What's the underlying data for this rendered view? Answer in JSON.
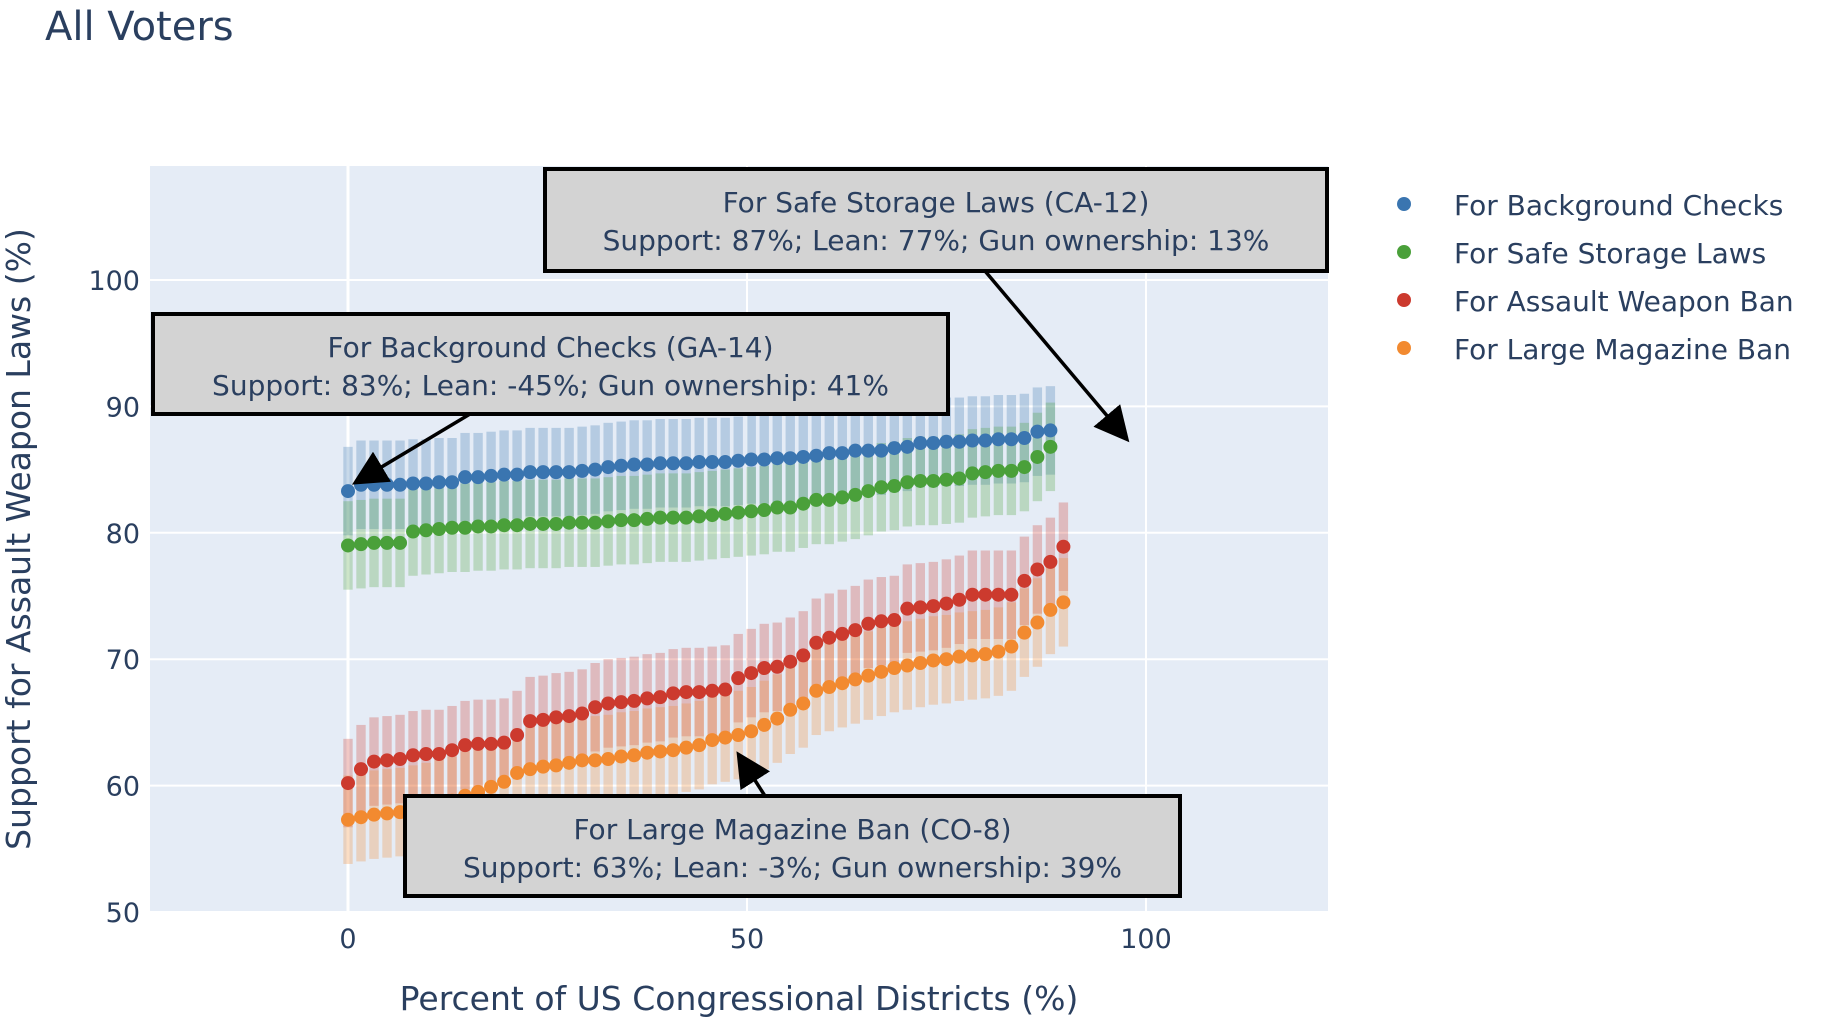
{
  "chart_data": {
    "type": "scatter",
    "title": "All Voters",
    "xlabel": "Percent of US Congressional Districts (%)",
    "ylabel": "Support for Assault Weapon Laws (%)",
    "xlim": [
      -24.5,
      122.5
    ],
    "ylim": [
      50,
      109
    ],
    "x_ticks": [
      0,
      50,
      100
    ],
    "y_ticks": [
      50,
      60,
      70,
      80,
      90,
      100
    ],
    "grid": true,
    "legend_position": "right",
    "x_step": 1.63,
    "error_band_halfwidth": 3.5,
    "series": [
      {
        "name": "For Background Checks",
        "color": "#3a75b0",
        "values": [
          83.3,
          83.8,
          83.8,
          83.8,
          83.8,
          83.9,
          83.9,
          84.0,
          84.0,
          84.4,
          84.4,
          84.5,
          84.6,
          84.6,
          84.8,
          84.8,
          84.8,
          84.8,
          84.9,
          85.0,
          85.2,
          85.3,
          85.4,
          85.4,
          85.5,
          85.5,
          85.5,
          85.6,
          85.6,
          85.6,
          85.7,
          85.8,
          85.8,
          85.9,
          85.9,
          86.0,
          86.1,
          86.3,
          86.3,
          86.5,
          86.5,
          86.5,
          86.7,
          86.8,
          87.1,
          87.1,
          87.2,
          87.2,
          87.3,
          87.3,
          87.4,
          87.4,
          87.5,
          88.0,
          88.1
        ]
      },
      {
        "name": "For Safe Storage Laws",
        "color": "#4aa03a",
        "values": [
          79.0,
          79.1,
          79.2,
          79.2,
          79.2,
          80.1,
          80.2,
          80.3,
          80.4,
          80.4,
          80.5,
          80.5,
          80.6,
          80.6,
          80.7,
          80.7,
          80.7,
          80.8,
          80.8,
          80.8,
          80.9,
          81.0,
          81.0,
          81.1,
          81.2,
          81.2,
          81.2,
          81.3,
          81.4,
          81.5,
          81.6,
          81.7,
          81.8,
          82.0,
          82.0,
          82.3,
          82.6,
          82.6,
          82.8,
          83.0,
          83.3,
          83.6,
          83.7,
          84.0,
          84.1,
          84.1,
          84.2,
          84.3,
          84.7,
          84.8,
          84.9,
          84.9,
          85.2,
          86.0,
          86.8
        ]
      },
      {
        "name": "For Assault Weapon Ban",
        "color": "#cc3a2e",
        "values": [
          60.2,
          61.3,
          61.9,
          62.0,
          62.1,
          62.4,
          62.5,
          62.5,
          62.8,
          63.2,
          63.3,
          63.3,
          63.4,
          64.0,
          65.1,
          65.2,
          65.4,
          65.5,
          65.7,
          66.2,
          66.5,
          66.6,
          66.7,
          66.9,
          67.0,
          67.3,
          67.4,
          67.4,
          67.5,
          67.6,
          68.5,
          68.9,
          69.3,
          69.4,
          69.8,
          70.3,
          71.3,
          71.7,
          72.0,
          72.3,
          72.8,
          73.0,
          73.1,
          74.0,
          74.1,
          74.2,
          74.4,
          74.7,
          75.1,
          75.1,
          75.1,
          75.1,
          76.2,
          77.1,
          77.7,
          78.9
        ]
      },
      {
        "name": "For Large Magazine Ban",
        "color": "#f28a30",
        "values": [
          57.3,
          57.5,
          57.7,
          57.8,
          57.9,
          58.1,
          58.3,
          58.6,
          58.8,
          59.2,
          59.5,
          59.9,
          60.3,
          61.0,
          61.3,
          61.5,
          61.6,
          61.8,
          62.0,
          62.0,
          62.1,
          62.3,
          62.4,
          62.6,
          62.7,
          62.8,
          63.0,
          63.2,
          63.6,
          63.8,
          64.0,
          64.3,
          64.8,
          65.3,
          66.0,
          66.5,
          67.5,
          67.8,
          68.1,
          68.4,
          68.7,
          69.0,
          69.3,
          69.5,
          69.7,
          69.9,
          70.0,
          70.2,
          70.3,
          70.4,
          70.6,
          71.0,
          72.1,
          72.9,
          73.9,
          74.5
        ]
      }
    ],
    "annotations": [
      {
        "line1": "For Safe Storage Laws (CA-12)",
        "line2": "Support: 87%; Lean: 77%; Gun ownership: 13%",
        "x": 98.1,
        "y": 86.8
      },
      {
        "line1": "For Background Checks (GA-14)",
        "line2": "Support: 83%; Lean: -45%; Gun ownership: 41%",
        "x": 0,
        "y": 83.3
      },
      {
        "line1": "For Large Magazine Ban (CO-8)",
        "line2": "Support: 63%; Lean: -3%; Gun ownership: 39%",
        "x": 48.9,
        "y": 63.2
      }
    ]
  }
}
